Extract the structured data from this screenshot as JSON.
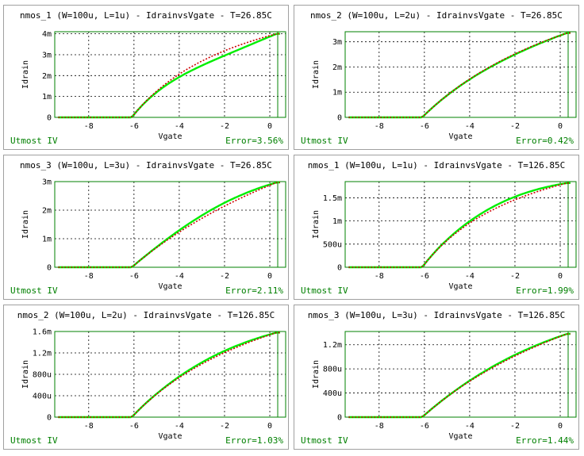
{
  "chart_data": [
    {
      "type": "line",
      "title": "nmos_1 (W=100u, L=1u) - IdrainvsVgate - T=26.85C",
      "xlabel": "Vgate",
      "ylabel": "Idrain",
      "xlim": [
        -9.5,
        0.7
      ],
      "ylim": [
        0,
        0.0041
      ],
      "xticks": [
        -8,
        -6,
        -4,
        -2,
        0
      ],
      "xtick_labels": [
        "-8",
        "-6",
        "-4",
        "-2",
        "0"
      ],
      "yticks": [
        0,
        0.001,
        0.002,
        0.003,
        0.004
      ],
      "ytick_labels": [
        "0",
        "1m",
        "2m",
        "3m",
        "4m"
      ],
      "model": "Utmost IV",
      "error": "Error=3.56%",
      "imax": 0.004,
      "shape": 1.2,
      "meas_dev": -0.08,
      "knee_soft": 0
    },
    {
      "type": "line",
      "title": "nmos_2 (W=100u, L=2u) - IdrainvsVgate - T=26.85C",
      "xlabel": "Vgate",
      "ylabel": "Idrain",
      "xlim": [
        -9.5,
        0.7
      ],
      "ylim": [
        0,
        0.0034
      ],
      "xticks": [
        -8,
        -6,
        -4,
        -2,
        0
      ],
      "xtick_labels": [
        "-8",
        "-6",
        "-4",
        "-2",
        "0"
      ],
      "yticks": [
        0,
        0.001,
        0.002,
        0.003
      ],
      "ytick_labels": [
        "0",
        "1m",
        "2m",
        "3m"
      ],
      "model": "Utmost IV",
      "error": "Error=0.42%",
      "imax": 0.00335,
      "shape": 0.7,
      "meas_dev": -0.01,
      "knee_soft": 0
    },
    {
      "type": "line",
      "title": "nmos_3 (W=100u, L=3u) - IdrainvsVgate - T=26.85C",
      "xlabel": "Vgate",
      "ylabel": "Idrain",
      "xlim": [
        -9.5,
        0.7
      ],
      "ylim": [
        0,
        0.003
      ],
      "xticks": [
        -8,
        -6,
        -4,
        -2,
        0
      ],
      "xtick_labels": [
        "-8",
        "-6",
        "-4",
        "-2",
        "0"
      ],
      "yticks": [
        0,
        0.001,
        0.002,
        0.003
      ],
      "ytick_labels": [
        "0",
        "1m",
        "2m",
        "3m"
      ],
      "model": "Utmost IV",
      "error": "Error=2.11%",
      "imax": 0.00297,
      "shape": 0.45,
      "meas_dev": 0.06,
      "knee_soft": 0
    },
    {
      "type": "line",
      "title": "nmos_1 (W=100u, L=1u) - IdrainvsVgate - T=126.85C",
      "xlabel": "Vgate",
      "ylabel": "Idrain",
      "xlim": [
        -9.5,
        0.7
      ],
      "ylim": [
        0,
        0.00185
      ],
      "xticks": [
        -8,
        -6,
        -4,
        -2,
        0
      ],
      "xtick_labels": [
        "-8",
        "-6",
        "-4",
        "-2",
        "0"
      ],
      "yticks": [
        0,
        0.0005,
        0.001,
        0.0015
      ],
      "ytick_labels": [
        "0",
        "500u",
        "1m",
        "1.5m"
      ],
      "model": "Utmost IV",
      "error": "Error=1.99%",
      "imax": 0.00182,
      "shape": 1.25,
      "meas_dev": 0.05,
      "knee_soft": 0.35
    },
    {
      "type": "line",
      "title": "nmos_2 (W=100u, L=2u) - IdrainvsVgate - T=126.85C",
      "xlabel": "Vgate",
      "ylabel": "Idrain",
      "xlim": [
        -9.5,
        0.7
      ],
      "ylim": [
        0,
        0.0016
      ],
      "xticks": [
        -8,
        -6,
        -4,
        -2,
        0
      ],
      "xtick_labels": [
        "-8",
        "-6",
        "-4",
        "-2",
        "0"
      ],
      "yticks": [
        0,
        0.0004,
        0.0008,
        0.0012,
        0.0016
      ],
      "ytick_labels": [
        "0",
        "400u",
        "800u",
        "1.2m",
        "1.6m"
      ],
      "model": "Utmost IV",
      "error": "Error=1.03%",
      "imax": 0.00158,
      "shape": 0.8,
      "meas_dev": 0.03,
      "knee_soft": 0.3
    },
    {
      "type": "line",
      "title": "nmos_3 (W=100u, L=3u) - IdrainvsVgate - T=126.85C",
      "xlabel": "Vgate",
      "ylabel": "Idrain",
      "xlim": [
        -9.5,
        0.7
      ],
      "ylim": [
        0,
        0.00142
      ],
      "xticks": [
        -8,
        -6,
        -4,
        -2,
        0
      ],
      "xtick_labels": [
        "-8",
        "-6",
        "-4",
        "-2",
        "0"
      ],
      "yticks": [
        0,
        0.0004,
        0.0008,
        0.0012
      ],
      "ytick_labels": [
        "0",
        "400u",
        "800u",
        "1.2m"
      ],
      "model": "Utmost IV",
      "error": "Error=1.44%",
      "imax": 0.00138,
      "shape": 0.55,
      "meas_dev": 0.02,
      "knee_soft": 0.3
    }
  ],
  "colors": {
    "measured": "#00ee00",
    "simulated": "#cc0000",
    "frame": "#008000",
    "grid": "#000000",
    "status_text": "#008000"
  }
}
